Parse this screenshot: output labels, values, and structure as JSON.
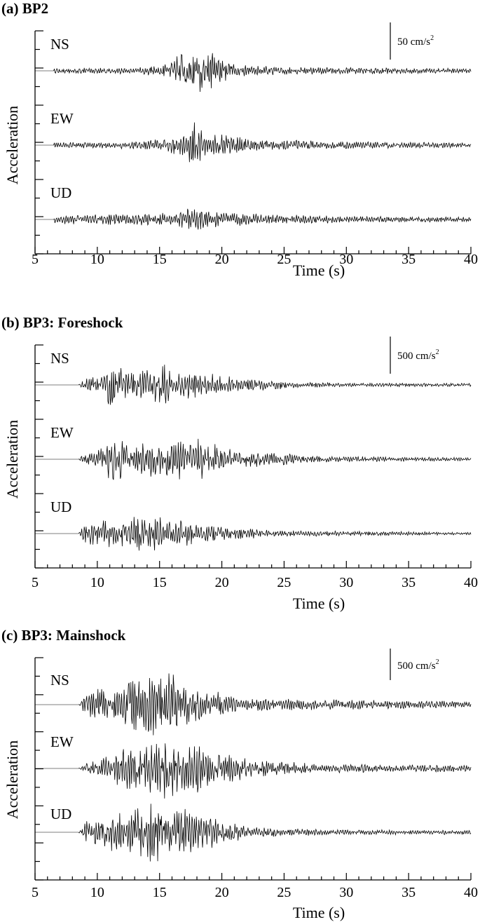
{
  "figure": {
    "colors": {
      "axis": "#000000",
      "trace": "#000000",
      "background": "#ffffff"
    }
  },
  "chart_data": [
    {
      "type": "line",
      "title": "(a) BP2",
      "xlabel": "Time (s)",
      "ylabel": "Acceleration",
      "xlim": [
        5,
        40
      ],
      "x_ticks": [
        5,
        10,
        15,
        20,
        25,
        30,
        35,
        40
      ],
      "scale_bar": {
        "value": "50 cm/s",
        "superscript": "2",
        "value_cm_s2": 50
      },
      "grid": false,
      "series": [
        {
          "name": "NS",
          "onset_s": 6.5,
          "envelope": [
            [
              5,
              0
            ],
            [
              6.5,
              0.12
            ],
            [
              7,
              0.12
            ],
            [
              13,
              0.12
            ],
            [
              15.5,
              0.28
            ],
            [
              16.5,
              0.6
            ],
            [
              17,
              1.0
            ],
            [
              17.6,
              0.75
            ],
            [
              18.3,
              0.85
            ],
            [
              19,
              0.75
            ],
            [
              19.8,
              0.55
            ],
            [
              21,
              0.28
            ],
            [
              23,
              0.2
            ],
            [
              26,
              0.14
            ],
            [
              32,
              0.12
            ],
            [
              40,
              0.1
            ]
          ]
        },
        {
          "name": "EW",
          "onset_s": 6.5,
          "envelope": [
            [
              5,
              0
            ],
            [
              6.5,
              0.12
            ],
            [
              7,
              0.12
            ],
            [
              13,
              0.15
            ],
            [
              15.5,
              0.25
            ],
            [
              17,
              0.55
            ],
            [
              17.7,
              0.9
            ],
            [
              18.5,
              0.6
            ],
            [
              20,
              0.42
            ],
            [
              22,
              0.28
            ],
            [
              25,
              0.2
            ],
            [
              30,
              0.14
            ],
            [
              40,
              0.1
            ]
          ]
        },
        {
          "name": "UD",
          "onset_s": 6.5,
          "envelope": [
            [
              5,
              0
            ],
            [
              6.5,
              0.15
            ],
            [
              8,
              0.2
            ],
            [
              13,
              0.22
            ],
            [
              16,
              0.3
            ],
            [
              17.5,
              0.45
            ],
            [
              18.5,
              0.38
            ],
            [
              20,
              0.3
            ],
            [
              23,
              0.22
            ],
            [
              30,
              0.13
            ],
            [
              40,
              0.1
            ]
          ]
        }
      ]
    },
    {
      "type": "line",
      "title": "(b) BP3: Foreshock",
      "xlabel": "Time (s)",
      "ylabel": "Acceleration",
      "xlim": [
        5,
        40
      ],
      "x_ticks": [
        5,
        10,
        15,
        20,
        25,
        30,
        35,
        40
      ],
      "scale_bar": {
        "value": "500 cm/s",
        "superscript": "2",
        "value_cm_s2": 500
      },
      "grid": false,
      "series": [
        {
          "name": "NS",
          "onset_s": 8.5,
          "envelope": [
            [
              5,
              0
            ],
            [
              8.5,
              0
            ],
            [
              8.8,
              0.25
            ],
            [
              10.5,
              0.35
            ],
            [
              11,
              0.9
            ],
            [
              11.3,
              1.0
            ],
            [
              12,
              0.7
            ],
            [
              13,
              0.45
            ],
            [
              14.5,
              0.6
            ],
            [
              15.5,
              0.75
            ],
            [
              16.5,
              0.55
            ],
            [
              18,
              0.55
            ],
            [
              19.5,
              0.38
            ],
            [
              21,
              0.28
            ],
            [
              23,
              0.22
            ],
            [
              26,
              0.1
            ],
            [
              30,
              0.07
            ],
            [
              40,
              0.06
            ]
          ]
        },
        {
          "name": "EW",
          "onset_s": 8.5,
          "envelope": [
            [
              5,
              0
            ],
            [
              8.5,
              0
            ],
            [
              8.8,
              0.15
            ],
            [
              10,
              0.3
            ],
            [
              11,
              0.9
            ],
            [
              11.3,
              0.9
            ],
            [
              12,
              0.75
            ],
            [
              13,
              0.5
            ],
            [
              14.5,
              0.7
            ],
            [
              16,
              0.75
            ],
            [
              17.5,
              0.75
            ],
            [
              19,
              0.7
            ],
            [
              20,
              0.4
            ],
            [
              22,
              0.3
            ],
            [
              24.5,
              0.25
            ],
            [
              27,
              0.12
            ],
            [
              40,
              0.06
            ]
          ]
        },
        {
          "name": "UD",
          "onset_s": 8.5,
          "envelope": [
            [
              5,
              0
            ],
            [
              8.5,
              0
            ],
            [
              8.8,
              0.3
            ],
            [
              10.5,
              0.65
            ],
            [
              12,
              0.6
            ],
            [
              13.8,
              0.65
            ],
            [
              15,
              0.75
            ],
            [
              16,
              0.5
            ],
            [
              18,
              0.42
            ],
            [
              20,
              0.3
            ],
            [
              22,
              0.2
            ],
            [
              25,
              0.12
            ],
            [
              40,
              0.05
            ]
          ]
        }
      ]
    },
    {
      "type": "line",
      "title": "(c) BP3: Mainshock",
      "xlabel": "Time (s)",
      "ylabel": "Acceleration",
      "xlim": [
        5,
        40
      ],
      "x_ticks": [
        5,
        10,
        15,
        20,
        25,
        30,
        35,
        40
      ],
      "scale_bar": {
        "value": "500 cm/s",
        "superscript": "2",
        "value_cm_s2": 500
      },
      "grid": false,
      "series": [
        {
          "name": "NS",
          "onset_s": 8.5,
          "envelope": [
            [
              5,
              0
            ],
            [
              8.5,
              0
            ],
            [
              9,
              0.3
            ],
            [
              10,
              0.5
            ],
            [
              11,
              0.45
            ],
            [
              12,
              0.75
            ],
            [
              13,
              0.8
            ],
            [
              14,
              1.0
            ],
            [
              15,
              0.95
            ],
            [
              16,
              1.0
            ],
            [
              16.8,
              0.85
            ],
            [
              17.5,
              0.55
            ],
            [
              19,
              0.4
            ],
            [
              20,
              0.38
            ],
            [
              21,
              0.25
            ],
            [
              25,
              0.18
            ],
            [
              30,
              0.15
            ],
            [
              40,
              0.1
            ]
          ]
        },
        {
          "name": "EW",
          "onset_s": 8.5,
          "envelope": [
            [
              5,
              0
            ],
            [
              8.5,
              0
            ],
            [
              9,
              0.15
            ],
            [
              10.5,
              0.35
            ],
            [
              12.5,
              0.7
            ],
            [
              14,
              0.75
            ],
            [
              15,
              0.95
            ],
            [
              16,
              0.85
            ],
            [
              17,
              0.8
            ],
            [
              18.5,
              0.8
            ],
            [
              19.2,
              0.7
            ],
            [
              20,
              0.5
            ],
            [
              22,
              0.3
            ],
            [
              25,
              0.2
            ],
            [
              30,
              0.13
            ],
            [
              40,
              0.1
            ]
          ]
        },
        {
          "name": "UD",
          "onset_s": 8.5,
          "envelope": [
            [
              5,
              0
            ],
            [
              8.5,
              0
            ],
            [
              9,
              0.35
            ],
            [
              11,
              0.55
            ],
            [
              13,
              0.8
            ],
            [
              14.2,
              0.95
            ],
            [
              15.5,
              0.9
            ],
            [
              17,
              0.7
            ],
            [
              19,
              0.5
            ],
            [
              20,
              0.35
            ],
            [
              22,
              0.2
            ],
            [
              25,
              0.12
            ],
            [
              30,
              0.08
            ],
            [
              40,
              0.07
            ]
          ]
        }
      ]
    }
  ]
}
